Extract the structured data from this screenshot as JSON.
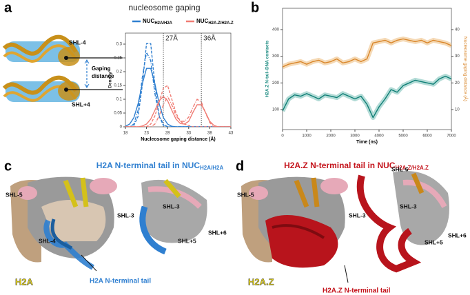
{
  "panel_labels": [
    "a",
    "b",
    "c",
    "d"
  ],
  "structure_a": {
    "labels": [
      "SHL-4",
      "SHL+4"
    ],
    "gap_label": [
      "Gaping",
      "distance"
    ]
  },
  "chart_data": [
    {
      "type": "line",
      "title": "nucleosome gaping",
      "x_label": "Nucleosome gaping distance (Å)",
      "y_label": "Density",
      "x": [
        18,
        19,
        20,
        21,
        22,
        23,
        24,
        25,
        26,
        27,
        28,
        29,
        30,
        31,
        32,
        33,
        34,
        35,
        36,
        37,
        38,
        39,
        40,
        41,
        42,
        43
      ],
      "xlim": [
        18,
        43
      ],
      "xticks": [
        18,
        23,
        28,
        33,
        38,
        43
      ],
      "ylim": [
        0,
        0.34
      ],
      "yticks": [
        0,
        0.05,
        0.1,
        0.15,
        0.2,
        0.25,
        0.3
      ],
      "series": [
        {
          "name": "NUC",
          "name_sub": "H2A/H2A",
          "color": "#2f7fd0",
          "style": "solid",
          "values": [
            0.002,
            0.01,
            0.033,
            0.084,
            0.156,
            0.212,
            0.212,
            0.156,
            0.084,
            0.033,
            0.01,
            0.002,
            0,
            0,
            0,
            0,
            0,
            0,
            0,
            0,
            0,
            0,
            0,
            0,
            0,
            0
          ]
        },
        {
          "color": "#2f7fd0",
          "style": "dashed",
          "values": [
            0,
            0,
            0.005,
            0.038,
            0.151,
            0.302,
            0.302,
            0.151,
            0.038,
            0.005,
            0,
            0,
            0,
            0,
            0,
            0,
            0,
            0,
            0,
            0,
            0,
            0,
            0,
            0,
            0,
            0
          ]
        },
        {
          "color": "#2f7fd0",
          "style": "dashdot",
          "values": [
            0,
            0,
            0.01,
            0.06,
            0.18,
            0.27,
            0.24,
            0.12,
            0.04,
            0.01,
            0,
            0,
            0,
            0,
            0,
            0,
            0,
            0,
            0,
            0,
            0,
            0,
            0,
            0,
            0,
            0
          ]
        },
        {
          "name": "NUC",
          "name_sub": "H2A.Z/H2A.Z",
          "color": "#f07c74",
          "style": "solid",
          "values": [
            0,
            0,
            0,
            0,
            0.003,
            0.01,
            0.028,
            0.06,
            0.095,
            0.11,
            0.095,
            0.06,
            0.028,
            0.012,
            0.01,
            0.02,
            0.052,
            0.08,
            0.08,
            0.052,
            0.02,
            0.005,
            0,
            0,
            0,
            0
          ]
        },
        {
          "color": "#f07c74",
          "style": "dashed",
          "values": [
            0,
            0,
            0,
            0,
            0,
            0,
            0.01,
            0.04,
            0.09,
            0.14,
            0.15,
            0.1,
            0.05,
            0.02,
            0.01,
            0.005,
            0,
            0,
            0,
            0,
            0,
            0,
            0,
            0,
            0,
            0
          ]
        },
        {
          "color": "#f07c74",
          "style": "dashdot",
          "values": [
            0,
            0,
            0,
            0,
            0,
            0,
            0,
            0.01,
            0.04,
            0.08,
            0.11,
            0.08,
            0.04,
            0.02,
            0.02,
            0.035,
            0.07,
            0.1,
            0.09,
            0.05,
            0.015,
            0,
            0,
            0,
            0,
            0
          ]
        }
      ],
      "vlines": [
        {
          "x": 27,
          "label": "27Å"
        },
        {
          "x": 36,
          "label": "36Å"
        }
      ]
    },
    {
      "type": "line",
      "x_label": "Time (ns)",
      "y_label": "H2A.Z N-tail–DNA contacts",
      "y2_label": "Nucleosome gaping distance (Å)",
      "x": [
        0,
        250,
        500,
        750,
        1000,
        1250,
        1500,
        1750,
        2000,
        2250,
        2500,
        2750,
        3000,
        3250,
        3500,
        3750,
        4000,
        4250,
        4500,
        4750,
        5000,
        5250,
        5500,
        5750,
        6000,
        6250,
        6500,
        6750,
        7000
      ],
      "xlim": [
        0,
        7000
      ],
      "xticks": [
        0,
        1000,
        2000,
        3000,
        4000,
        5000,
        6000,
        7000
      ],
      "ylim": [
        25,
        480
      ],
      "yticks": [
        100,
        200,
        300,
        400
      ],
      "ytick_color": "#1a8a80",
      "y2lim": [
        2.5,
        48
      ],
      "y2ticks": [
        10,
        20,
        30,
        40
      ],
      "y2tick_color": "#d9862a",
      "series": [
        {
          "color": "#0f7f76",
          "band_color": "#9fd2cc",
          "style": "solid",
          "values": [
            95,
            140,
            155,
            150,
            160,
            150,
            140,
            155,
            150,
            145,
            160,
            150,
            140,
            150,
            120,
            70,
            110,
            140,
            175,
            165,
            190,
            200,
            210,
            205,
            200,
            195,
            215,
            225,
            215
          ]
        },
        {
          "color": "#d9862a",
          "band_color": "#f3cfa3",
          "style": "solid",
          "axis": "y2",
          "values": [
            26,
            27,
            27.5,
            28,
            27,
            28,
            28.5,
            27.5,
            28,
            29,
            27.5,
            28,
            29,
            28,
            29,
            35,
            35.5,
            36,
            35,
            36,
            36.5,
            36,
            35.5,
            36,
            35,
            36,
            35.5,
            35,
            34
          ]
        }
      ]
    }
  ],
  "panel_c": {
    "title": "H2A N-terminal tail in NUC",
    "title_sub": "H2A/H2A",
    "labels": [
      "SHL-5",
      "SHL-3",
      "SHL-4",
      "SHL-3",
      "SHL+5",
      "SHL+6"
    ],
    "histone": "H2A",
    "tail_label": "H2A N-terminal tail"
  },
  "panel_d": {
    "title": "H2A.Z N-terminal tail in NUC",
    "title_sub": "H2A.Z/H2A.Z",
    "labels": [
      "SHL-5",
      "SHL-3",
      "SHL-6",
      "SHL-3",
      "SHL+6",
      "SHL+5"
    ],
    "histone": "H2A.Z",
    "tail_label": "H2A.Z N-terminal tail"
  }
}
